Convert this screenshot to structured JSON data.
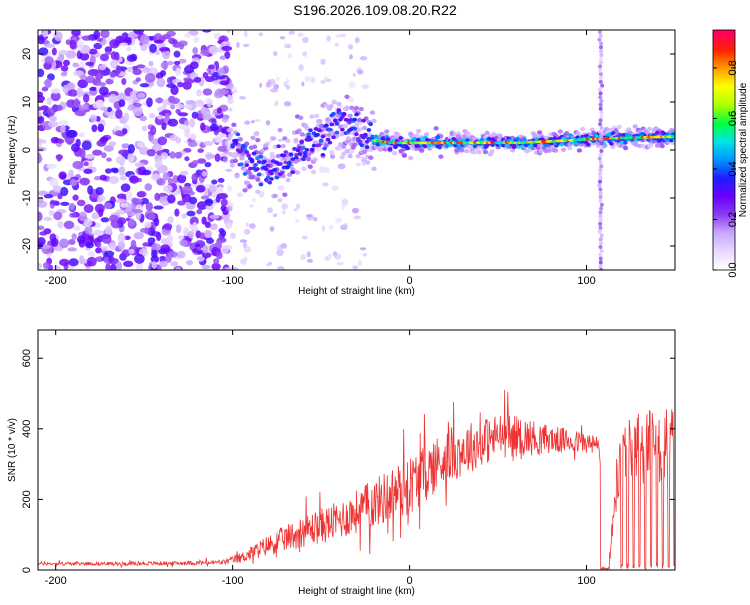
{
  "chart_data": [
    {
      "type": "heatmap",
      "title": "S196.2026.109.08.20.R22",
      "xlabel": "Height of straight line (km)",
      "ylabel": "Frequency (Hz)",
      "xlim": [
        -210,
        150
      ],
      "ylim": [
        -25,
        25
      ],
      "x_ticks": [
        -200,
        -100,
        0,
        100
      ],
      "y_ticks": [
        -20,
        -10,
        0,
        10,
        20
      ],
      "colorbar": {
        "label": "Normalized spectral amplitude",
        "range": [
          0,
          0.95
        ],
        "ticks": [
          0.0,
          0.2,
          0.4,
          0.6,
          0.8
        ],
        "colors": [
          "#ffffff",
          "#e8d8ff",
          "#c9a8ff",
          "#8b3cf2",
          "#6a00ff",
          "#1e1eff",
          "#0096ff",
          "#00e5e5",
          "#00ff40",
          "#b0ff00",
          "#ffff00",
          "#ff9a00",
          "#ff2000",
          "#ff0066"
        ]
      },
      "ridge": {
        "description_points_km_hz": [
          [
            -100,
            2
          ],
          [
            -95,
            -1
          ],
          [
            -90,
            -3
          ],
          [
            -80,
            -4
          ],
          [
            -70,
            -2
          ],
          [
            -60,
            1
          ],
          [
            -50,
            3
          ],
          [
            -40,
            6
          ],
          [
            -30,
            4
          ],
          [
            -20,
            2
          ],
          [
            -10,
            1.5
          ],
          [
            0,
            1.5
          ],
          [
            20,
            1.5
          ],
          [
            40,
            1.5
          ],
          [
            60,
            1.5
          ],
          [
            80,
            1.8
          ],
          [
            100,
            2.2
          ],
          [
            110,
            2.4
          ],
          [
            120,
            2.5
          ],
          [
            150,
            2.8
          ]
        ],
        "vertical_band_km": 108
      }
    },
    {
      "type": "line",
      "title": "",
      "xlabel": "Height of straight line (km)",
      "ylabel": "SNR (10 * v/v)",
      "xlim": [
        -210,
        150
      ],
      "ylim": [
        0,
        680
      ],
      "x_ticks": [
        -200,
        -100,
        0,
        100
      ],
      "y_ticks": [
        0,
        200,
        400,
        600
      ],
      "series": [
        {
          "name": "SNR",
          "color": "#ee3333",
          "envelope_x": [
            -210,
            -160,
            -120,
            -105,
            -95,
            -80,
            -60,
            -40,
            -20,
            0,
            20,
            40,
            50,
            60,
            80,
            100,
            107,
            112,
            120,
            140,
            150
          ],
          "envelope_mean": [
            18,
            18,
            20,
            22,
            35,
            70,
            110,
            140,
            190,
            240,
            320,
            360,
            380,
            380,
            370,
            360,
            350,
            0,
            350,
            350,
            350
          ],
          "envelope_spread": [
            10,
            10,
            12,
            15,
            30,
            60,
            90,
            110,
            140,
            170,
            160,
            140,
            130,
            120,
            80,
            60,
            60,
            0,
            200,
            220,
            220
          ]
        }
      ]
    }
  ]
}
